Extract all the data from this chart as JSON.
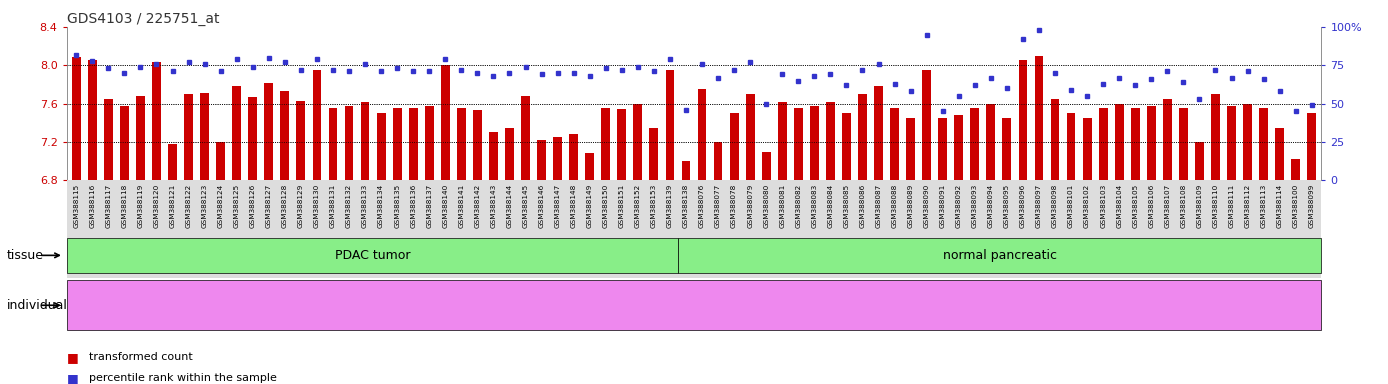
{
  "title": "GDS4103 / 225751_at",
  "ylim_left": [
    6.8,
    8.4
  ],
  "ylim_right": [
    0,
    100
  ],
  "yticks_left": [
    6.8,
    7.2,
    7.6,
    8.0,
    8.4
  ],
  "yticks_right": [
    0,
    25,
    50,
    75,
    100
  ],
  "bar_color": "#cc0000",
  "dot_color": "#3333cc",
  "background_color": "#ffffff",
  "plot_bg_color": "#ffffff",
  "tick_color_left": "#cc0000",
  "tick_color_right": "#3333cc",
  "xlabel_bg": "#dddddd",
  "samples_pdac": [
    "GSM388115",
    "GSM388116",
    "GSM388117",
    "GSM388118",
    "GSM388119",
    "GSM388120",
    "GSM388121",
    "GSM388122",
    "GSM388123",
    "GSM388124",
    "GSM388125",
    "GSM388126",
    "GSM388127",
    "GSM388128",
    "GSM388129",
    "GSM388130",
    "GSM388131",
    "GSM388132",
    "GSM388133",
    "GSM388134",
    "GSM388135",
    "GSM388136",
    "GSM388137",
    "GSM388140",
    "GSM388141",
    "GSM388142",
    "GSM388143",
    "GSM388144",
    "GSM388145",
    "GSM388146",
    "GSM388147",
    "GSM388148",
    "GSM388149",
    "GSM388150",
    "GSM388151",
    "GSM388152",
    "GSM388153",
    "GSM388139"
  ],
  "samples_normal": [
    "GSM388138",
    "GSM388076",
    "GSM388077",
    "GSM388078",
    "GSM388079",
    "GSM388080",
    "GSM388081",
    "GSM388082",
    "GSM388083",
    "GSM388084",
    "GSM388085",
    "GSM388086",
    "GSM388087",
    "GSM388088",
    "GSM388089",
    "GSM388090",
    "GSM388091",
    "GSM388092",
    "GSM388093",
    "GSM388094",
    "GSM388095",
    "GSM388096",
    "GSM388097",
    "GSM388098",
    "GSM388101",
    "GSM388102",
    "GSM388103",
    "GSM388104",
    "GSM388105",
    "GSM388106",
    "GSM388107",
    "GSM388108",
    "GSM388109",
    "GSM388110",
    "GSM388111",
    "GSM388112",
    "GSM388113",
    "GSM388114",
    "GSM388100",
    "GSM388099"
  ],
  "bar_values_pdac": [
    8.09,
    8.05,
    7.65,
    7.58,
    7.68,
    8.03,
    7.18,
    7.7,
    7.71,
    7.2,
    7.78,
    7.67,
    7.82,
    7.73,
    7.63,
    7.95,
    7.56,
    7.58,
    7.62,
    7.5,
    7.56,
    7.55,
    7.58,
    8.0,
    7.56,
    7.53,
    7.3,
    7.35,
    7.68,
    7.22,
    7.25,
    7.28,
    7.09,
    7.56,
    7.54,
    7.6,
    7.35,
    7.95
  ],
  "bar_values_normal": [
    7.0,
    7.75,
    7.2,
    7.5,
    7.7,
    7.1,
    7.62,
    7.55,
    7.58,
    7.62,
    7.5,
    7.7,
    7.78,
    7.55,
    7.45,
    7.95,
    7.45,
    7.48,
    7.55,
    7.6,
    7.45,
    8.05,
    8.1,
    7.65,
    7.5,
    7.45,
    7.55,
    7.6,
    7.55,
    7.58,
    7.65,
    7.55,
    7.2,
    7.7,
    7.58,
    7.6,
    7.55,
    7.35,
    7.02,
    7.5
  ],
  "dot_values_pdac": [
    82,
    78,
    73,
    70,
    74,
    76,
    71,
    77,
    76,
    71,
    79,
    74,
    80,
    77,
    72,
    79,
    72,
    71,
    76,
    71,
    73,
    71,
    71,
    79,
    72,
    70,
    68,
    70,
    74,
    69,
    70,
    70,
    68,
    73,
    72,
    74,
    71,
    79
  ],
  "dot_values_normal": [
    46,
    76,
    67,
    72,
    77,
    50,
    69,
    65,
    68,
    69,
    62,
    72,
    76,
    63,
    58,
    95,
    45,
    55,
    62,
    67,
    60,
    92,
    98,
    70,
    59,
    55,
    63,
    67,
    62,
    66,
    71,
    64,
    53,
    72,
    67,
    71,
    66,
    58,
    45,
    49
  ],
  "pdac_label": "PDAC tumor",
  "normal_label": "normal pancreatic",
  "tissue_label": "tissue",
  "individual_label": "individual",
  "legend_bar": "transformed count",
  "legend_dot": "percentile rank within the sample",
  "pdac_tissue_bg": "#88ee88",
  "normal_tissue_bg": "#88ee88",
  "individual_bg": "#ee88ee",
  "grid_color": "#555555",
  "spine_color": "#888888"
}
